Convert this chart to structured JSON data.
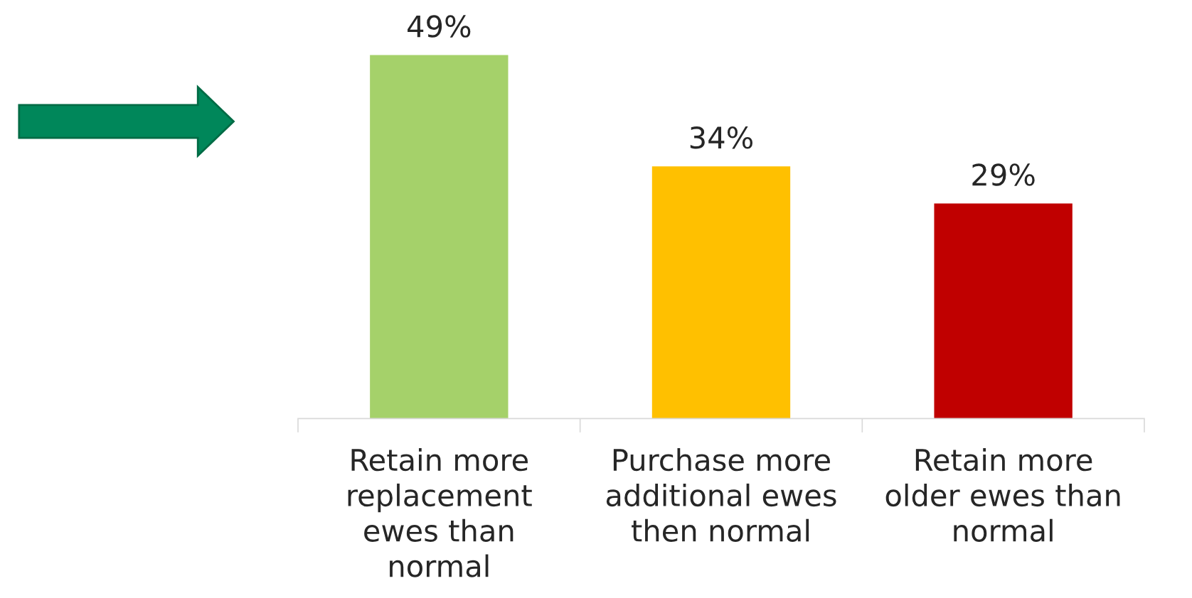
{
  "chart_data": {
    "type": "bar",
    "categories": [
      "Retain more\nreplacement\newes than\nnormal",
      "Purchase more\nadditional ewes\nthen normal",
      "Retain more\nolder ewes than\nnormal"
    ],
    "values": [
      49,
      34,
      29
    ],
    "colors": [
      "#a5d16a",
      "#ffc000",
      "#c00000"
    ],
    "value_labels": [
      "49%",
      "34%",
      "29%"
    ],
    "grid": false,
    "legend": false
  }
}
